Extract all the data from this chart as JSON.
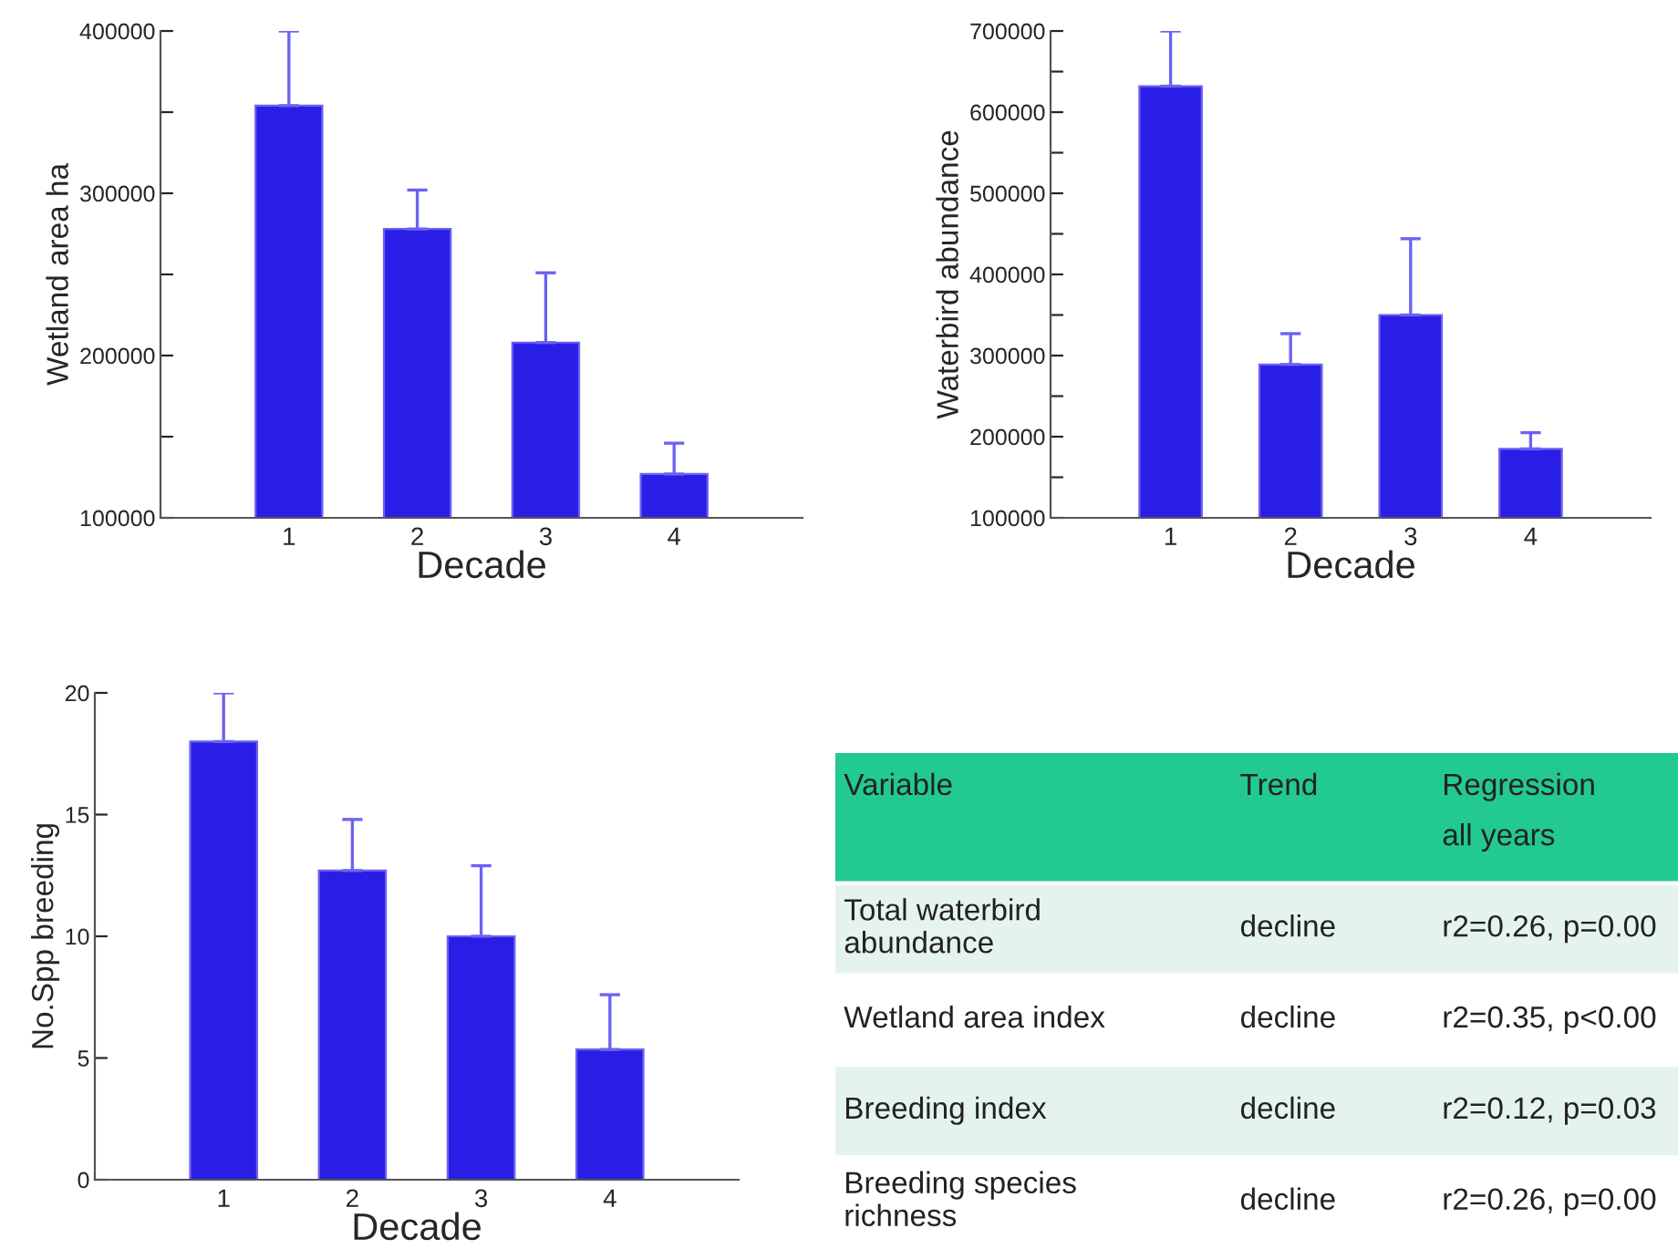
{
  "chart_data": [
    {
      "type": "bar",
      "xlabel": "Decade",
      "ylabel": "Wetland area ha",
      "categories": [
        "1",
        "2",
        "3",
        "4"
      ],
      "color": "#2a1ee6",
      "values": [
        354000,
        278000,
        208000,
        127000
      ],
      "errors": [
        [
          354000,
          400000
        ],
        [
          278000,
          302000
        ],
        [
          208000,
          251000
        ],
        [
          127000,
          146000
        ]
      ],
      "ylim": [
        100000,
        400000
      ],
      "yticks": [
        100000,
        {
          "value": 150000,
          "label": null
        },
        200000,
        {
          "value": 250000,
          "label": null
        },
        300000,
        {
          "value": 350000,
          "label": null
        },
        400000
      ]
    },
    {
      "type": "bar",
      "xlabel": "Decade",
      "ylabel": "Waterbird abundance",
      "categories": [
        "1",
        "2",
        "3",
        "4"
      ],
      "color": "#2a1ee6",
      "values": [
        632000,
        289000,
        350000,
        185000
      ],
      "errors": [
        [
          632000,
          700000
        ],
        [
          289000,
          327000
        ],
        [
          350000,
          444000
        ],
        [
          185000,
          205000
        ]
      ],
      "ylim": [
        100000,
        700000
      ],
      "yticks": [
        100000,
        {
          "value": 150000,
          "label": null
        },
        200000,
        {
          "value": 250000,
          "label": null
        },
        300000,
        {
          "value": 350000,
          "label": null
        },
        400000,
        {
          "value": 450000,
          "label": null
        },
        500000,
        {
          "value": 550000,
          "label": null
        },
        600000,
        {
          "value": 650000,
          "label": null
        },
        700000
      ]
    },
    {
      "type": "bar",
      "xlabel": "Decade",
      "ylabel": "No.Spp breeding",
      "categories": [
        "1",
        "2",
        "3",
        "4"
      ],
      "color": "#2a1ee6",
      "values": [
        18.0,
        12.7,
        10.0,
        5.35
      ],
      "errors": [
        [
          18.0,
          20.0
        ],
        [
          12.7,
          14.8
        ],
        [
          10.0,
          12.9
        ],
        [
          5.35,
          7.6
        ]
      ],
      "ylim": [
        0,
        20
      ],
      "yticks": [
        0,
        5,
        10,
        15,
        20
      ]
    },
    {
      "type": "other",
      "annotations": [
        "Variable",
        "Trend",
        "Regression\nall years",
        "Total waterbird\nabundance",
        "decline",
        "r2=0.26, p=0.00",
        "Wetland area index",
        "decline",
        "r2=0.35, p<0.00",
        "Breeding index",
        "decline",
        "r2=0.12, p=0.03",
        "Breeding species\nrichness",
        "decline",
        "r2=0.26, p=0.00"
      ]
    }
  ]
}
